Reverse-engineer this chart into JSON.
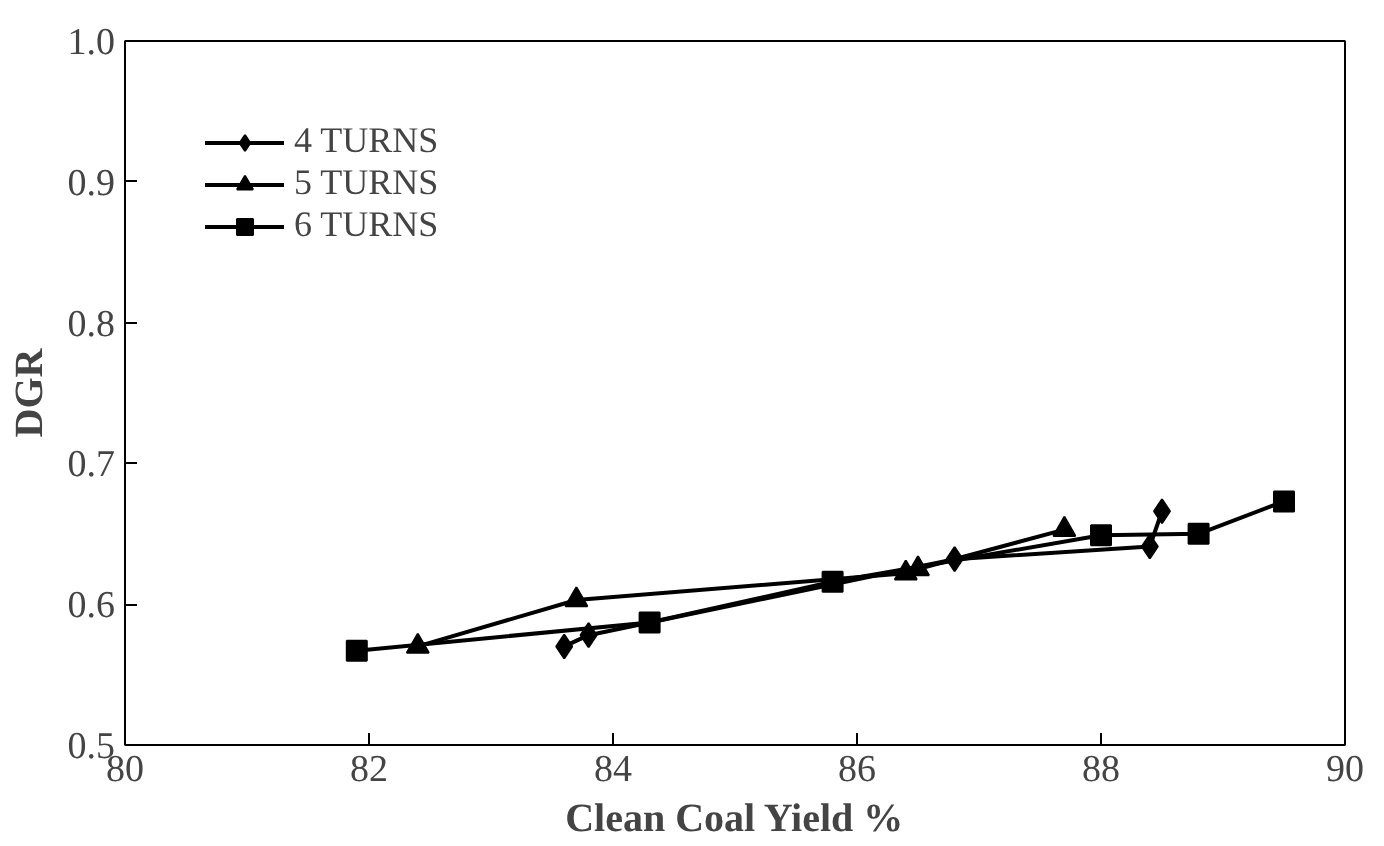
{
  "chart_data": {
    "type": "line",
    "xlabel": "Clean Coal Yield %",
    "ylabel": "DGR",
    "xlim": [
      80,
      90
    ],
    "xticks": [
      80,
      82,
      84,
      86,
      88,
      90
    ],
    "ylim": [
      0.5,
      1.0
    ],
    "yticks": [
      {
        "value": 0.5,
        "label": "0.5"
      },
      {
        "value": 0.6,
        "label": "0.6"
      },
      {
        "value": 0.7,
        "label": "0.7"
      },
      {
        "value": 0.8,
        "label": "0.8"
      },
      {
        "value": 0.9,
        "label": "0.9"
      },
      {
        "value": 1.0,
        "label": "1.0"
      }
    ],
    "legend": "top left",
    "grid": false,
    "series": [
      {
        "name": "4 TURNS",
        "color": "#000000",
        "marker": "diamond",
        "x": [
          83.6,
          83.8,
          86.8,
          88.4,
          88.5
        ],
        "values": [
          0.57,
          0.578,
          0.632,
          0.641,
          0.666
        ]
      },
      {
        "name": "5 TURNS",
        "color": "#000000",
        "marker": "triangle",
        "x": [
          82.4,
          83.7,
          86.4,
          86.5,
          87.7
        ],
        "values": [
          0.57,
          0.603,
          0.622,
          0.625,
          0.653
        ]
      },
      {
        "name": "6 TURNS",
        "color": "#000000",
        "marker": "square",
        "x": [
          81.9,
          84.3,
          85.8,
          88.0,
          88.8,
          89.5
        ],
        "values": [
          0.567,
          0.587,
          0.616,
          0.649,
          0.65,
          0.673
        ]
      }
    ]
  }
}
